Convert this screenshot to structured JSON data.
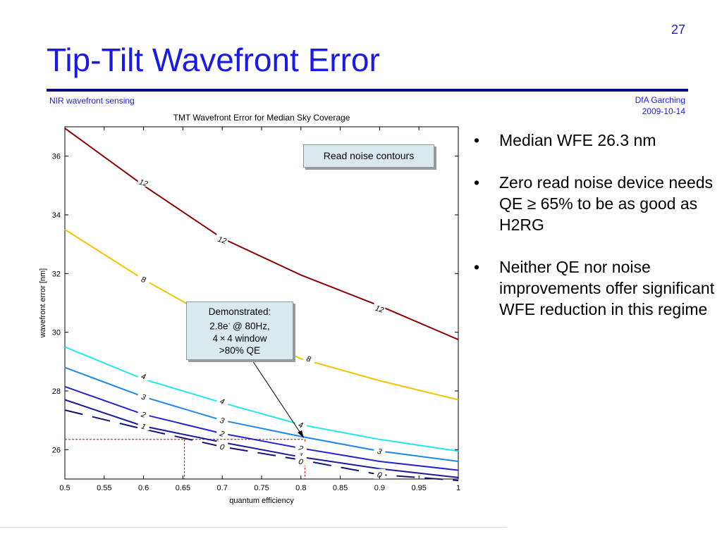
{
  "slide": {
    "number": "27",
    "title": "Tip-Tilt Wavefront Error",
    "header_left": "NIR wavefront sensing",
    "header_right_line1": "DfA Garching",
    "header_right_line2": "2009-10-14"
  },
  "bullets": [
    "Median WFE 26.3 nm",
    "Zero read noise device needs QE ≥ 65% to be as good as H2RG",
    "Neither QE nor noise improvements offer significant WFE reduction in this regime"
  ],
  "legend_box": "Read noise contours",
  "callout": {
    "line1": "Demonstrated:",
    "line2_pre": "2.8e",
    "line2_sup": "-",
    "line2_post": " @ 80Hz,",
    "line3": "4 × 4 window",
    "line4": ">80% QE"
  },
  "colors": {
    "title": "#1a1ae6",
    "rule": "#0b0b80",
    "c12": "#8b0000",
    "c8": "#f5c200",
    "c4": "#22e6ee",
    "c3": "#1e88e8",
    "c2": "#2424cc",
    "c1": "#1a1a9a",
    "c0": "#141470",
    "reference": "#cc0000",
    "callout_bg": "#d9e9ee"
  },
  "chart_data": {
    "type": "line",
    "title": "TMT Wavefront Error for Median Sky Coverage",
    "xlabel": "quantum efficiency",
    "ylabel": "wavefront error [nm]",
    "xlim": [
      0.5,
      1.0
    ],
    "ylim": [
      25.0,
      37.0
    ],
    "xticks": [
      0.5,
      0.55,
      0.6,
      0.65,
      0.7,
      0.75,
      0.8,
      0.85,
      0.9,
      0.95,
      1.0
    ],
    "xtick_labels": [
      "0.5",
      "0.55",
      "0.6",
      "0.65",
      "0.7",
      "0.75",
      "0.8",
      "0.85",
      "0.9",
      "0.95",
      "1"
    ],
    "yticks": [
      26,
      28,
      30,
      32,
      34,
      36
    ],
    "ytick_labels": [
      "26",
      "28",
      "30",
      "32",
      "34",
      "36"
    ],
    "grid": false,
    "series": [
      {
        "name": "12",
        "color_key": "c12",
        "x": [
          0.5,
          0.6,
          0.7,
          0.8,
          0.9,
          1.0
        ],
        "y": [
          36.95,
          35.0,
          33.2,
          31.95,
          30.9,
          29.75
        ],
        "labels": [
          {
            "x": 0.6,
            "y": 35.1,
            "text": "12"
          },
          {
            "x": 0.7,
            "y": 33.15,
            "text": "12"
          },
          {
            "x": 0.9,
            "y": 30.8,
            "text": "12"
          }
        ]
      },
      {
        "name": "8",
        "color_key": "c8",
        "x": [
          0.5,
          0.6,
          0.7,
          0.8,
          0.9,
          1.0
        ],
        "y": [
          33.5,
          31.8,
          30.3,
          29.1,
          28.35,
          27.7
        ],
        "labels": [
          {
            "x": 0.6,
            "y": 31.8,
            "text": "8"
          },
          {
            "x": 0.81,
            "y": 29.1,
            "text": "8"
          }
        ]
      },
      {
        "name": "4",
        "color_key": "c4",
        "x": [
          0.5,
          0.6,
          0.7,
          0.8,
          0.9,
          1.0
        ],
        "y": [
          29.5,
          28.4,
          27.6,
          26.85,
          26.35,
          25.95
        ],
        "labels": [
          {
            "x": 0.6,
            "y": 28.5,
            "text": "4"
          },
          {
            "x": 0.7,
            "y": 27.65,
            "text": "4"
          },
          {
            "x": 0.8,
            "y": 26.85,
            "text": "4"
          }
        ]
      },
      {
        "name": "3",
        "color_key": "c3",
        "x": [
          0.5,
          0.6,
          0.7,
          0.8,
          0.9,
          1.0
        ],
        "y": [
          28.8,
          27.8,
          27.0,
          26.45,
          25.95,
          25.6
        ],
        "labels": [
          {
            "x": 0.6,
            "y": 27.8,
            "text": "3"
          },
          {
            "x": 0.7,
            "y": 27.0,
            "text": "3"
          },
          {
            "x": 0.9,
            "y": 25.95,
            "text": "3"
          }
        ]
      },
      {
        "name": "2",
        "color_key": "c2",
        "x": [
          0.5,
          0.6,
          0.7,
          0.8,
          0.9,
          1.0
        ],
        "y": [
          28.15,
          27.2,
          26.55,
          26.05,
          25.6,
          25.3
        ],
        "labels": [
          {
            "x": 0.6,
            "y": 27.2,
            "text": "2"
          },
          {
            "x": 0.7,
            "y": 26.55,
            "text": "2"
          },
          {
            "x": 0.8,
            "y": 26.05,
            "text": "2"
          }
        ]
      },
      {
        "name": "1",
        "color_key": "c1",
        "x": [
          0.5,
          0.6,
          0.7,
          0.8,
          0.9,
          1.0
        ],
        "y": [
          27.7,
          26.8,
          26.25,
          25.75,
          25.35,
          25.05
        ],
        "labels": [
          {
            "x": 0.6,
            "y": 26.8,
            "text": "1"
          },
          {
            "x": 0.8,
            "y": 25.8,
            "text": "1"
          }
        ]
      },
      {
        "name": "0",
        "color_key": "c0",
        "x": [
          0.5,
          0.6,
          0.7,
          0.8,
          0.9,
          1.0
        ],
        "y": [
          27.35,
          26.7,
          26.1,
          25.65,
          25.15,
          24.95
        ],
        "labels": [
          {
            "x": 0.7,
            "y": 26.1,
            "text": "0"
          },
          {
            "x": 0.8,
            "y": 25.6,
            "text": "0"
          },
          {
            "x": 0.9,
            "y": 25.15,
            "text": "0"
          }
        ]
      }
    ],
    "reference_lines": [
      {
        "name": "median-wfe",
        "from": [
          0.5,
          26.35
        ],
        "to": [
          0.805,
          26.35
        ]
      },
      {
        "name": "qe-065",
        "from": [
          0.652,
          26.35
        ],
        "to": [
          0.652,
          25.0
        ]
      },
      {
        "name": "qe-080",
        "from": [
          0.805,
          26.35
        ],
        "to": [
          0.805,
          25.0
        ]
      }
    ],
    "annotations": [
      "Read noise contours",
      "Demonstrated"
    ]
  }
}
